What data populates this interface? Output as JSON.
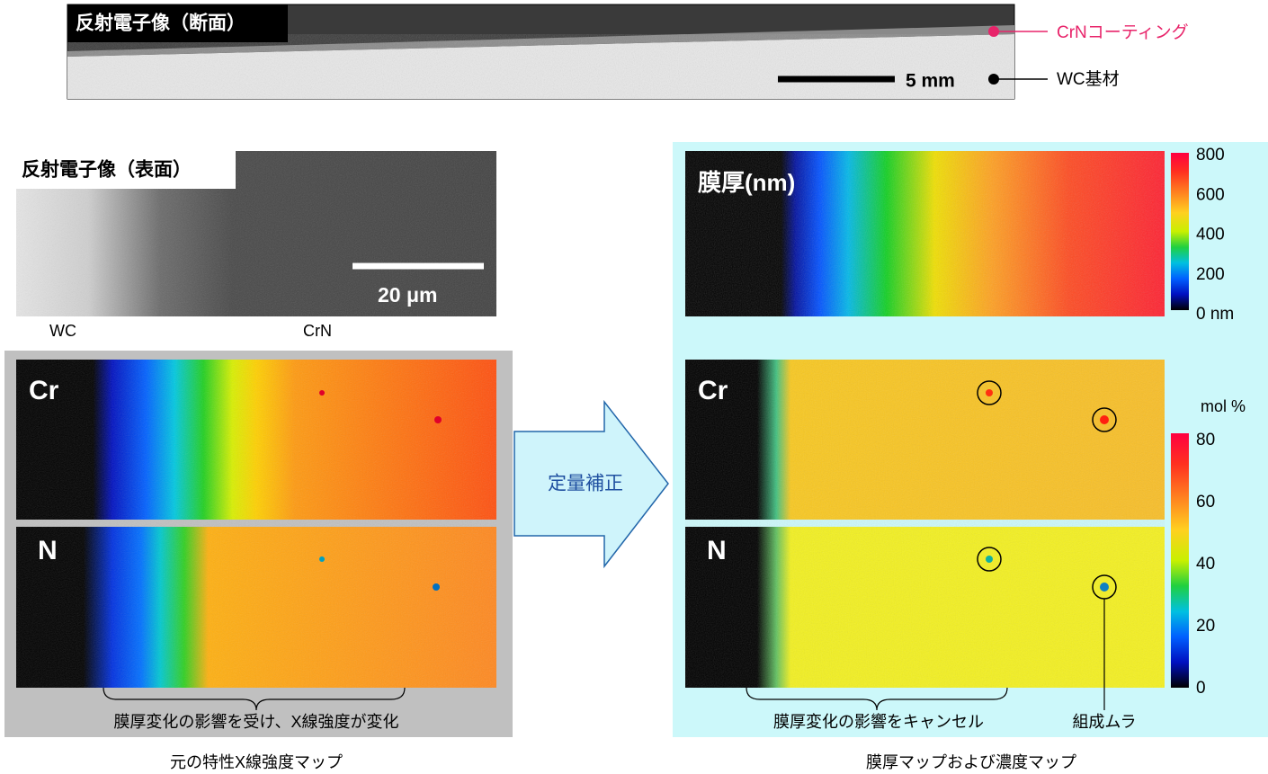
{
  "cross_section": {
    "label": "反射電子像（断面）",
    "scale": "5 mm",
    "coating": "CrNコーティング",
    "substrate": "WC基材"
  },
  "surface": {
    "label": "反射電子像（表面）",
    "scale": "20 μm",
    "left": "WC",
    "right": "CrN"
  },
  "left_panel": {
    "cr": "Cr",
    "n": "N",
    "note": "膜厚変化の影響を受け、X線強度が変化",
    "caption": "元の特性X線強度マップ"
  },
  "arrow": "定量補正",
  "right_panel": {
    "thickness_label": "膜厚(nm)",
    "thickness_scale": [
      "800",
      "600",
      "400",
      "200",
      "0 nm"
    ],
    "cr": "Cr",
    "n": "N",
    "unit": "mol %",
    "conc_scale": [
      "80",
      "60",
      "40",
      "20",
      "0"
    ],
    "note": "膜厚変化の影響をキャンセル",
    "nonuniformity": "組成ムラ",
    "caption": "膜厚マップおよび濃度マップ"
  }
}
